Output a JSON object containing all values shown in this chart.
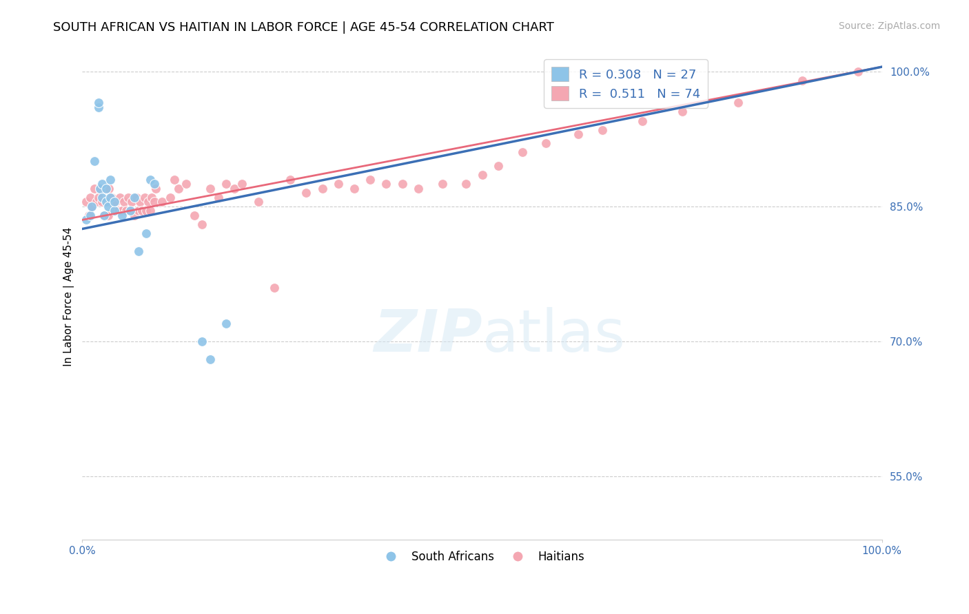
{
  "title": "SOUTH AFRICAN VS HAITIAN IN LABOR FORCE | AGE 45-54 CORRELATION CHART",
  "source_text": "Source: ZipAtlas.com",
  "ylabel": "In Labor Force | Age 45-54",
  "xlim": [
    0.0,
    1.0
  ],
  "ylim": [
    0.48,
    1.02
  ],
  "y_ticks_right": [
    0.55,
    0.7,
    0.85,
    1.0
  ],
  "y_tick_labels_right": [
    "55.0%",
    "70.0%",
    "85.0%",
    "100.0%"
  ],
  "blue_R": 0.308,
  "blue_N": 27,
  "pink_R": 0.511,
  "pink_N": 74,
  "blue_color": "#8EC4E8",
  "pink_color": "#F4A7B2",
  "blue_line_color": "#3B6FB5",
  "pink_line_color": "#E8687A",
  "background_color": "#FFFFFF",
  "blue_scatter_x": [
    0.005,
    0.01,
    0.012,
    0.015,
    0.02,
    0.02,
    0.022,
    0.025,
    0.025,
    0.027,
    0.03,
    0.03,
    0.032,
    0.035,
    0.035,
    0.04,
    0.04,
    0.05,
    0.06,
    0.065,
    0.07,
    0.08,
    0.085,
    0.09,
    0.15,
    0.16,
    0.18
  ],
  "blue_scatter_y": [
    0.835,
    0.84,
    0.85,
    0.9,
    0.96,
    0.965,
    0.87,
    0.86,
    0.875,
    0.84,
    0.855,
    0.87,
    0.85,
    0.86,
    0.88,
    0.845,
    0.855,
    0.84,
    0.845,
    0.86,
    0.8,
    0.82,
    0.88,
    0.875,
    0.7,
    0.68,
    0.72
  ],
  "pink_scatter_x": [
    0.005,
    0.008,
    0.01,
    0.012,
    0.015,
    0.018,
    0.02,
    0.022,
    0.025,
    0.027,
    0.028,
    0.03,
    0.032,
    0.033,
    0.035,
    0.037,
    0.04,
    0.042,
    0.045,
    0.047,
    0.05,
    0.052,
    0.055,
    0.057,
    0.06,
    0.062,
    0.065,
    0.068,
    0.07,
    0.072,
    0.075,
    0.078,
    0.08,
    0.082,
    0.085,
    0.087,
    0.09,
    0.092,
    0.1,
    0.11,
    0.115,
    0.12,
    0.13,
    0.14,
    0.15,
    0.16,
    0.17,
    0.18,
    0.19,
    0.2,
    0.22,
    0.24,
    0.26,
    0.28,
    0.3,
    0.32,
    0.34,
    0.36,
    0.38,
    0.4,
    0.42,
    0.45,
    0.48,
    0.5,
    0.52,
    0.55,
    0.58,
    0.62,
    0.65,
    0.7,
    0.75,
    0.82,
    0.9,
    0.97
  ],
  "pink_scatter_y": [
    0.855,
    0.84,
    0.86,
    0.85,
    0.87,
    0.855,
    0.86,
    0.87,
    0.855,
    0.84,
    0.87,
    0.855,
    0.84,
    0.87,
    0.855,
    0.86,
    0.845,
    0.855,
    0.845,
    0.86,
    0.845,
    0.855,
    0.845,
    0.86,
    0.845,
    0.855,
    0.84,
    0.86,
    0.845,
    0.855,
    0.845,
    0.86,
    0.845,
    0.855,
    0.845,
    0.86,
    0.855,
    0.87,
    0.855,
    0.86,
    0.88,
    0.87,
    0.875,
    0.84,
    0.83,
    0.87,
    0.86,
    0.875,
    0.87,
    0.875,
    0.855,
    0.76,
    0.88,
    0.865,
    0.87,
    0.875,
    0.87,
    0.88,
    0.875,
    0.875,
    0.87,
    0.875,
    0.875,
    0.885,
    0.895,
    0.91,
    0.92,
    0.93,
    0.935,
    0.945,
    0.955,
    0.965,
    0.99,
    1.0
  ],
  "blue_line_x0": 0.0,
  "blue_line_y0": 0.825,
  "blue_line_x1": 1.0,
  "blue_line_y1": 1.005,
  "pink_line_x0": 0.0,
  "pink_line_y0": 0.835,
  "pink_line_x1": 1.0,
  "pink_line_y1": 1.005,
  "title_fontsize": 13,
  "axis_label_fontsize": 11,
  "tick_fontsize": 11,
  "source_fontsize": 10,
  "watermark_color": "#D5E8F5",
  "watermark_alpha": 0.5
}
